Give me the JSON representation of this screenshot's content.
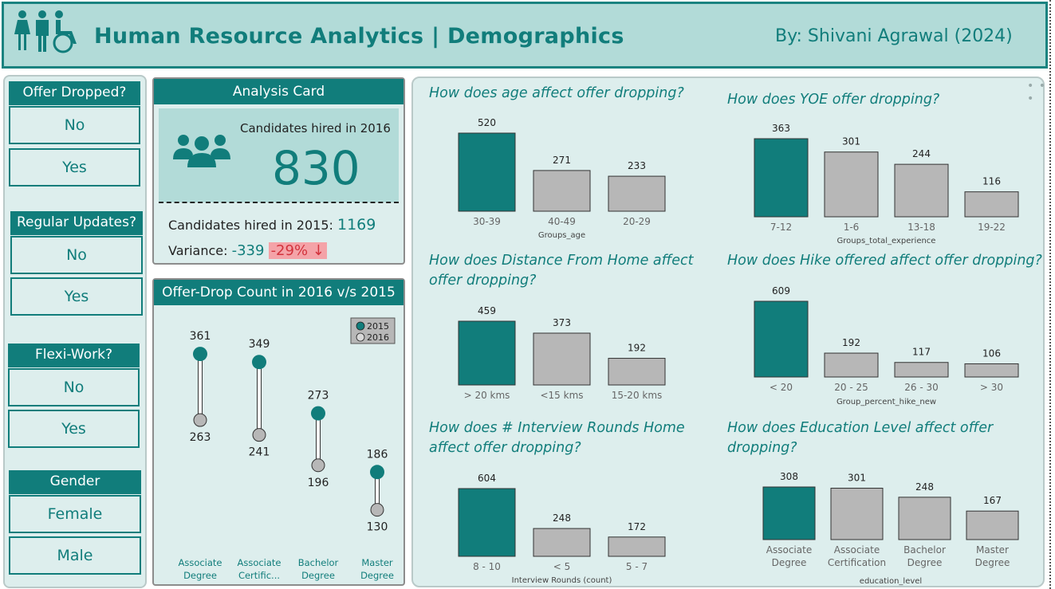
{
  "header": {
    "title": "Human Resource Analytics | Demographics",
    "author": "By: Shivani Agrawal (2024)"
  },
  "colors": {
    "teal": "#117d7b",
    "grey": "#b7b7b7",
    "panel": "#ddeeed",
    "header_bg": "#b2dbd8",
    "red_badge": "#f4a3a8"
  },
  "slicers": [
    {
      "title": "Offer Dropped?",
      "options": [
        "No",
        "Yes"
      ]
    },
    {
      "title": "Regular Updates?",
      "options": [
        "No",
        "Yes"
      ]
    },
    {
      "title": "Flexi-Work?",
      "options": [
        "No",
        "Yes"
      ]
    },
    {
      "title": "Gender",
      "options": [
        "Female",
        "Male"
      ]
    }
  ],
  "analysis_card": {
    "title": "Analysis Card",
    "hired_2016_label": "Candidates hired in 2016",
    "hired_2016_value": "830",
    "hired_2015_label": "Candidates hired in 2015:",
    "hired_2015_value": "1169",
    "variance_label": "Variance:",
    "variance_value": "-339",
    "variance_pct": "-29% ↓",
    "icon": "people-group-icon"
  },
  "dumbbell": {
    "title": "Offer-Drop Count in 2016 v/s 2015",
    "legend": [
      "2015",
      "2016"
    ]
  },
  "questions": {
    "age": "How does age affect offer dropping?",
    "yoe": "How does YOE offer dropping?",
    "distance": [
      "How does Distance From Home affect",
      "offer dropping?"
    ],
    "hike": "How does Hike offered affect offer dropping?",
    "rounds": [
      "How does # Interview Rounds Home",
      "affect offer dropping?"
    ],
    "education": [
      "How does Education Level affect offer",
      "dropping?"
    ]
  },
  "chart_data": [
    {
      "id": "dumbbell",
      "type": "dumbbell",
      "title": "Offer-Drop Count in 2016 v/s 2015",
      "categories": [
        "Associate Degree",
        "Associate Certific...",
        "Bachelor Degree",
        "Master Degree"
      ],
      "category_lines": [
        [
          "Associate",
          "Degree"
        ],
        [
          "Associate",
          "Certific..."
        ],
        [
          "Bachelor",
          "Degree"
        ],
        [
          "Master",
          "Degree"
        ]
      ],
      "series": [
        {
          "name": "2015",
          "values": [
            361,
            349,
            273,
            186
          ]
        },
        {
          "name": "2016",
          "values": [
            263,
            241,
            196,
            130
          ]
        }
      ],
      "legend_position": "top-right"
    },
    {
      "id": "age",
      "type": "bar",
      "categories": [
        "30-39",
        "40-49",
        "20-29"
      ],
      "values": [
        520,
        271,
        233
      ],
      "xlabel": "Groups_age",
      "highlight_index": 0
    },
    {
      "id": "yoe",
      "type": "bar",
      "categories": [
        "7-12",
        "1-6",
        "13-18",
        "19-22"
      ],
      "values": [
        363,
        301,
        244,
        116
      ],
      "xlabel": "Groups_total_experience",
      "highlight_index": 0
    },
    {
      "id": "distance",
      "type": "bar",
      "categories": [
        "> 20 kms",
        "<15 kms",
        "15-20 kms"
      ],
      "values": [
        459,
        373,
        192
      ],
      "xlabel": "",
      "highlight_index": 0
    },
    {
      "id": "hike",
      "type": "bar",
      "categories": [
        "< 20",
        "20 - 25",
        "26 - 30",
        "> 30"
      ],
      "values": [
        609,
        192,
        117,
        106
      ],
      "xlabel": "Group_percent_hike_new",
      "highlight_index": 0
    },
    {
      "id": "rounds",
      "type": "bar",
      "categories": [
        "8 - 10",
        "< 5",
        "5 - 7"
      ],
      "values": [
        604,
        248,
        172
      ],
      "xlabel": "Interview Rounds (count)",
      "highlight_index": 0
    },
    {
      "id": "education",
      "type": "bar",
      "categories": [
        "Associate Degree",
        "Associate Certification",
        "Bachelor Degree",
        "Master Degree"
      ],
      "category_lines": [
        [
          "Associate",
          "Degree"
        ],
        [
          "Associate",
          "Certification"
        ],
        [
          "Bachelor",
          "Degree"
        ],
        [
          "Master",
          "Degree"
        ]
      ],
      "values": [
        308,
        301,
        248,
        167
      ],
      "xlabel": "education_level",
      "highlight_index": 0
    }
  ]
}
